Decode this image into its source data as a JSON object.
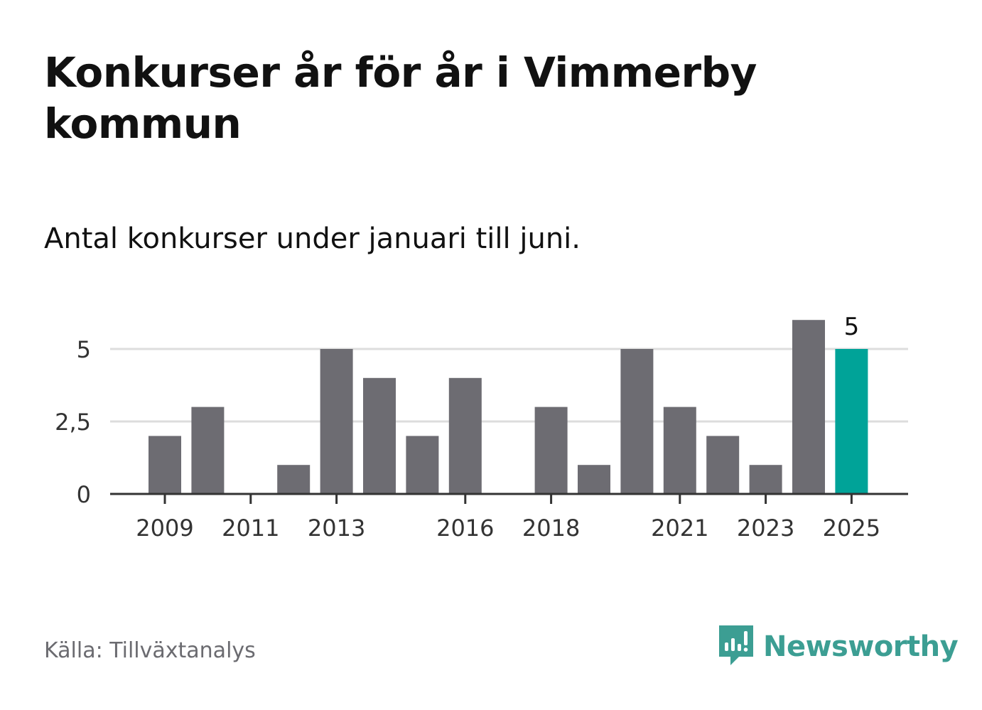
{
  "title": "Konkurser år för år i Vimmerby kommun",
  "subtitle": "Antal konkurser under januari till juni.",
  "source": "Källa: Tillväxtanalys",
  "brand": {
    "name": "Newsworthy",
    "icon": "newsworthy-logo-icon",
    "color": "#3c9e93"
  },
  "colors": {
    "bar": "#6d6c72",
    "highlight": "#00a398",
    "grid": "#dddddd",
    "axis": "#333333"
  },
  "chart_data": {
    "type": "bar",
    "categories": [
      "2009",
      "2010",
      "2011",
      "2012",
      "2013",
      "2014",
      "2015",
      "2016",
      "2017",
      "2018",
      "2019",
      "2020",
      "2021",
      "2022",
      "2023",
      "2024",
      "2025"
    ],
    "values": [
      2,
      3,
      0,
      1,
      5,
      4,
      2,
      4,
      0,
      3,
      1,
      5,
      3,
      2,
      1,
      6,
      5
    ],
    "x_tick_labels": [
      "2009",
      "2011",
      "2013",
      "2016",
      "2018",
      "2021",
      "2023",
      "2025"
    ],
    "y_ticks": [
      0,
      2.5,
      5
    ],
    "y_tick_labels": [
      "0",
      "2,5",
      "5"
    ],
    "ylim": [
      0,
      6
    ],
    "grid": true,
    "highlight_category": "2025",
    "highlight_label": "5"
  }
}
